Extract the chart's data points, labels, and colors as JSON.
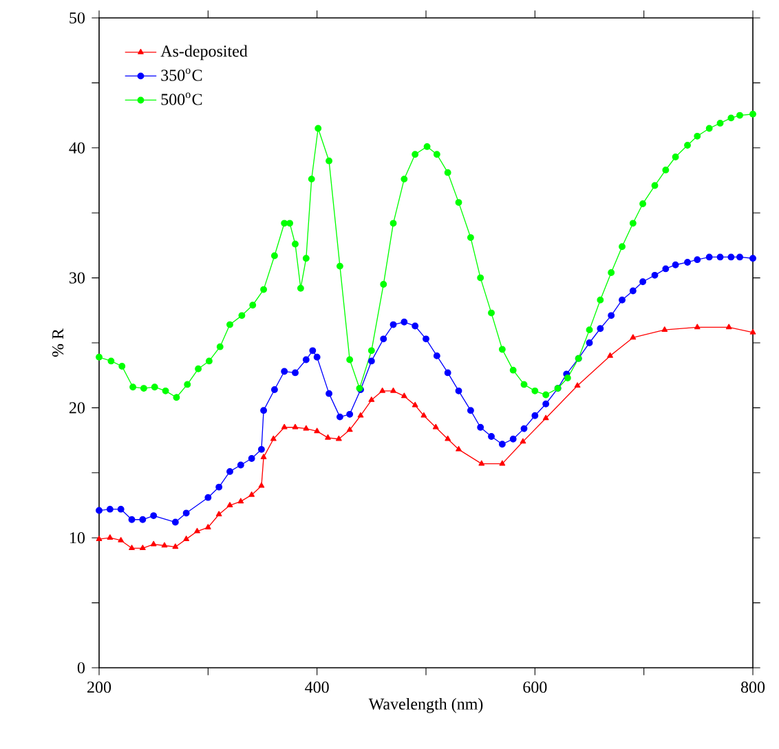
{
  "chart_data": {
    "type": "line",
    "xlabel": "Wavelength (nm)",
    "ylabel": "% R",
    "xlim": [
      200,
      800
    ],
    "ylim": [
      0,
      50
    ],
    "xticks": [
      200,
      {
        "value": 300,
        "label": null
      },
      400,
      {
        "value": 500,
        "label": null
      },
      600,
      {
        "value": 700,
        "label": null
      },
      800
    ],
    "yticks": [
      0,
      {
        "value": 5,
        "label": null
      },
      10,
      {
        "value": 15,
        "label": null
      },
      20,
      {
        "value": 25,
        "label": null
      },
      30,
      {
        "value": 35,
        "label": null
      },
      40,
      {
        "value": 45,
        "label": null
      },
      50
    ],
    "legend": "top left",
    "line_style": "solid",
    "grid": false,
    "series": [
      {
        "name": "As-deposited",
        "color": "#ff0000",
        "marker": "triangle",
        "x": [
          200,
          210,
          220,
          230,
          240,
          250,
          260,
          270,
          280,
          290,
          300,
          310,
          320,
          330,
          340,
          349,
          351,
          360,
          370,
          380,
          390,
          400,
          410,
          420,
          430,
          440,
          450,
          460,
          470,
          480,
          490,
          498,
          509,
          520,
          530,
          551,
          570,
          589,
          610,
          639,
          669,
          690,
          719,
          749,
          778,
          800
        ],
        "values": [
          9.9,
          10.0,
          9.8,
          9.2,
          9.2,
          9.5,
          9.4,
          9.3,
          9.9,
          10.5,
          10.8,
          11.8,
          12.5,
          12.8,
          13.3,
          14.0,
          16.2,
          17.6,
          18.5,
          18.5,
          18.4,
          18.2,
          17.7,
          17.6,
          18.3,
          19.4,
          20.6,
          21.3,
          21.3,
          20.9,
          20.2,
          19.4,
          18.5,
          17.6,
          16.8,
          15.7,
          15.7,
          17.4,
          19.2,
          21.7,
          24.0,
          25.4,
          26.0,
          26.2,
          26.2,
          25.8
        ]
      },
      {
        "name": "350$^{o}$C",
        "color": "#0000ff",
        "marker": "circle",
        "x": [
          200,
          210,
          220,
          230,
          240,
          250,
          270,
          280,
          300,
          310,
          320,
          330,
          340,
          349,
          351,
          361,
          370,
          380,
          390,
          396,
          400,
          411,
          421,
          430,
          440,
          450,
          461,
          470,
          480,
          490,
          500,
          510,
          520,
          530,
          541,
          550,
          560,
          570,
          580,
          590,
          600,
          610,
          621,
          629,
          640,
          650,
          660,
          670,
          680,
          690,
          699,
          710,
          720,
          729,
          740,
          749,
          760,
          770,
          780,
          788,
          800
        ],
        "values": [
          12.1,
          12.2,
          12.2,
          11.4,
          11.4,
          11.7,
          11.2,
          11.9,
          13.1,
          13.9,
          15.1,
          15.6,
          16.1,
          16.8,
          19.8,
          21.4,
          22.8,
          22.7,
          23.7,
          24.4,
          23.9,
          21.1,
          19.3,
          19.5,
          21.4,
          23.6,
          25.3,
          26.4,
          26.6,
          26.3,
          25.3,
          24.0,
          22.7,
          21.3,
          19.8,
          18.5,
          17.8,
          17.2,
          17.6,
          18.4,
          19.4,
          20.3,
          21.5,
          22.6,
          23.8,
          25.0,
          26.1,
          27.1,
          28.3,
          29.0,
          29.7,
          30.2,
          30.7,
          31.0,
          31.2,
          31.4,
          31.6,
          31.6,
          31.6,
          31.6,
          31.5
        ]
      },
      {
        "name": "500$^{o}$C",
        "color": "#00ff00",
        "marker": "circle",
        "x": [
          200,
          211,
          221,
          231,
          241,
          251,
          261,
          271,
          281,
          291,
          301,
          311,
          320,
          331,
          341,
          351,
          361,
          370,
          375,
          380,
          385,
          390,
          395,
          401,
          411,
          421,
          430,
          439,
          450,
          461,
          470,
          480,
          490,
          501,
          510,
          520,
          530,
          541,
          550,
          560,
          570,
          580,
          590,
          600,
          610,
          621,
          630,
          640,
          650,
          660,
          670,
          680,
          690,
          699,
          710,
          720,
          729,
          740,
          749,
          760,
          770,
          780,
          788,
          800
        ],
        "values": [
          23.9,
          23.6,
          23.2,
          21.6,
          21.5,
          21.6,
          21.3,
          20.8,
          21.8,
          23.0,
          23.6,
          24.7,
          26.4,
          27.1,
          27.9,
          29.1,
          31.7,
          34.2,
          34.2,
          32.6,
          29.2,
          31.5,
          37.6,
          41.5,
          39.0,
          30.9,
          23.7,
          21.5,
          24.4,
          29.5,
          34.2,
          37.6,
          39.5,
          40.1,
          39.5,
          38.1,
          35.8,
          33.1,
          30.0,
          27.3,
          24.5,
          22.9,
          21.8,
          21.3,
          21.0,
          21.5,
          22.3,
          23.8,
          26.0,
          28.3,
          30.4,
          32.4,
          34.2,
          35.7,
          37.1,
          38.3,
          39.3,
          40.2,
          40.9,
          41.5,
          41.9,
          42.3,
          42.5,
          42.6
        ]
      }
    ]
  }
}
